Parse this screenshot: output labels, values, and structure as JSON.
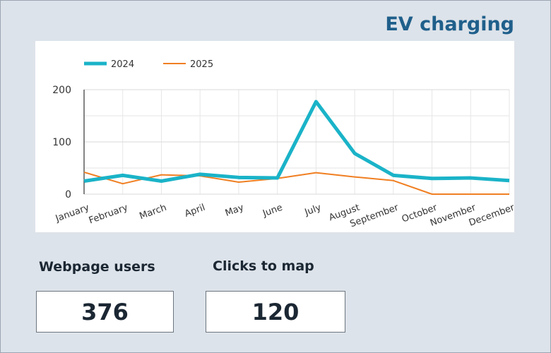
{
  "title": "EV charging",
  "chart_data": {
    "type": "line",
    "categories": [
      "January",
      "February",
      "March",
      "April",
      "May",
      "June",
      "July",
      "August",
      "September",
      "October",
      "November",
      "December"
    ],
    "series": [
      {
        "name": "2024",
        "color": "#1ab3c8",
        "values": [
          25,
          36,
          25,
          38,
          32,
          31,
          177,
          78,
          36,
          30,
          31,
          26
        ]
      },
      {
        "name": "2025",
        "color": "#f07f22",
        "values": [
          42,
          20,
          37,
          35,
          23,
          30,
          41,
          33,
          26,
          0,
          0,
          0
        ]
      }
    ],
    "ylim": [
      0,
      200
    ],
    "yticks": [
      0,
      100,
      200
    ],
    "minor_yticks": [
      50,
      150
    ],
    "grid": true,
    "legend": "top-left"
  },
  "cards": [
    {
      "label": "Webpage users",
      "value": "376"
    },
    {
      "label": "Clicks to map",
      "value": "120"
    }
  ]
}
